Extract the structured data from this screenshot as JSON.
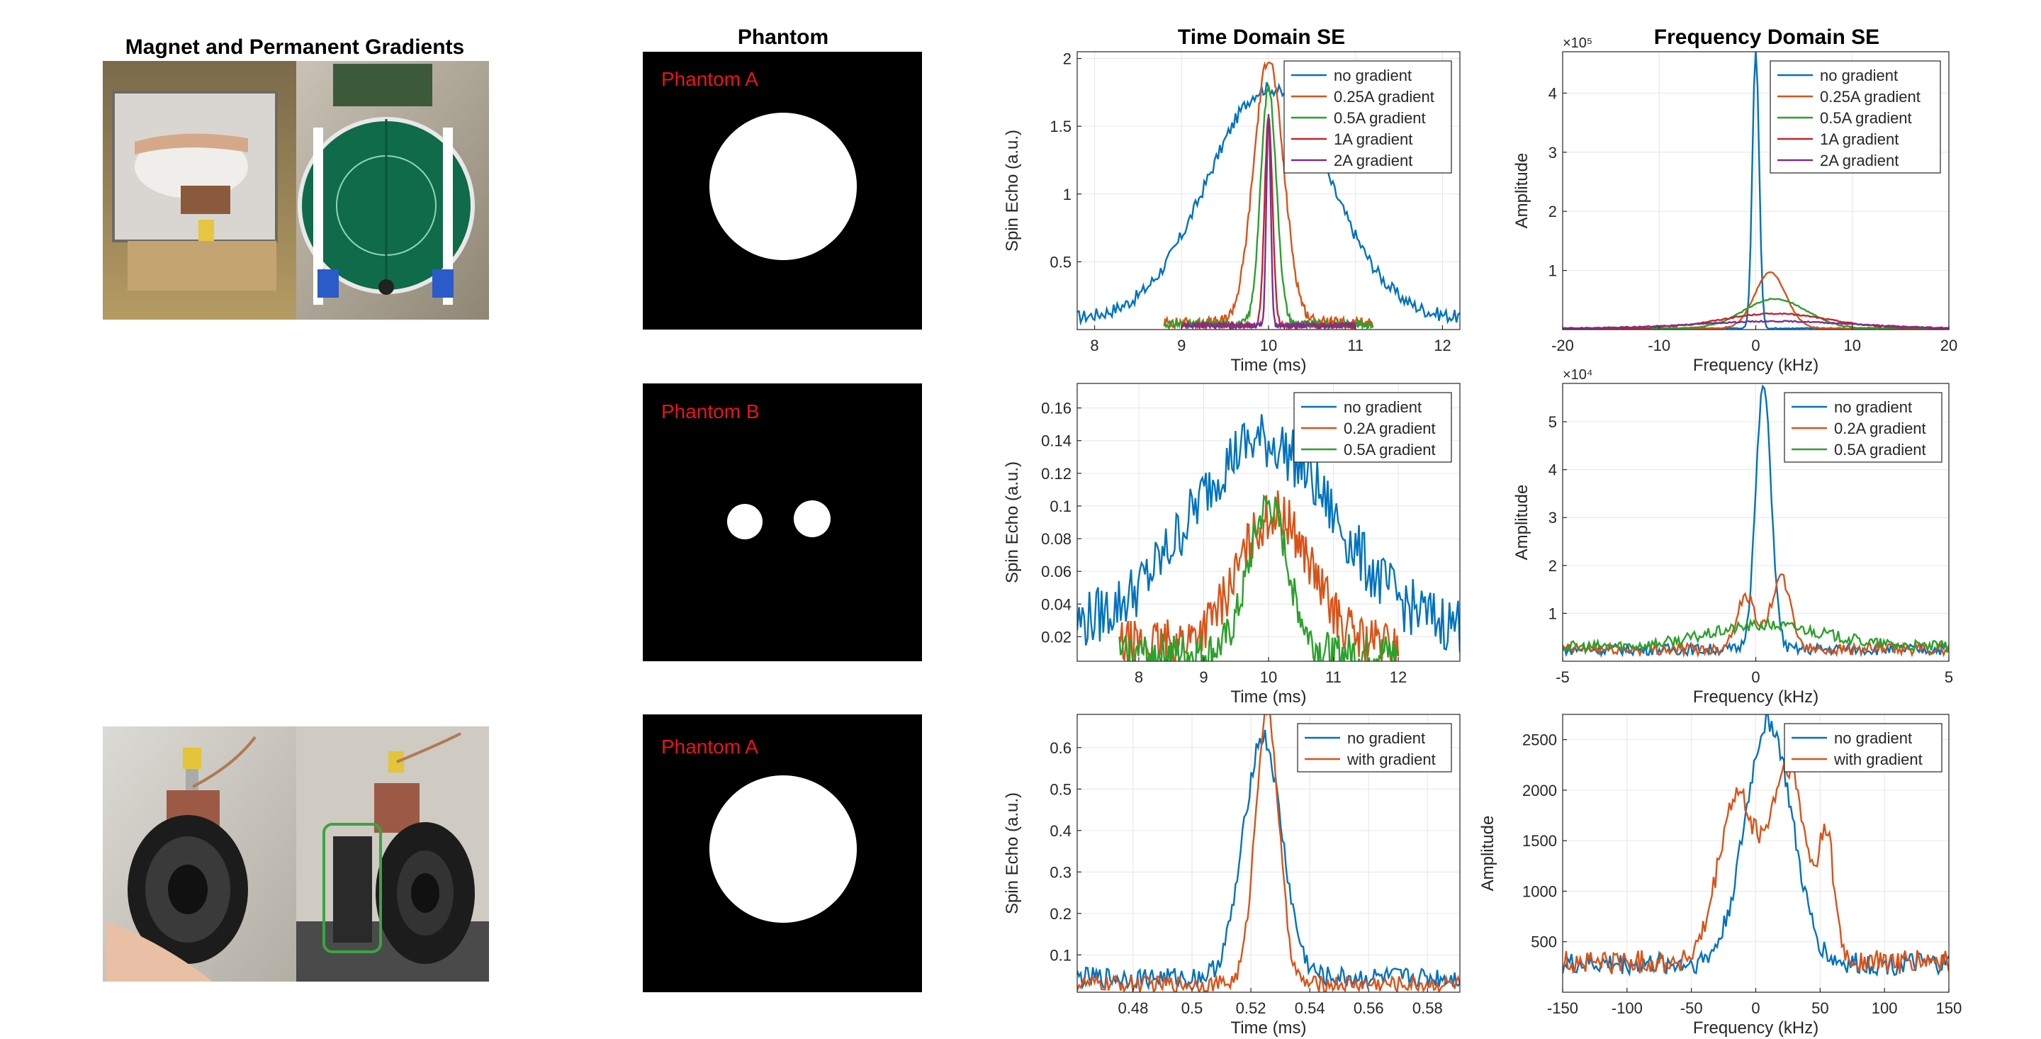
{
  "column_titles": {
    "hardware": "Magnet and Permanent Gradients",
    "phantom": "Phantom",
    "time": "Time Domain SE",
    "freq": "Frequency Domain SE"
  },
  "phantoms": [
    {
      "label": "Phantom A",
      "shape": "disk"
    },
    {
      "label": "Phantom B",
      "shape": "two-dots"
    },
    {
      "label": "Phantom A",
      "shape": "disk"
    }
  ],
  "colors": {
    "blue": "#0072BD",
    "orange": "#D95319",
    "yellow": "#EDB120",
    "green": "#2CA02C",
    "red": "#C0272D",
    "purple": "#7E2F8E",
    "label_red": "#E8141B"
  },
  "chart_data": [
    {
      "id": "time-a",
      "type": "line",
      "title": "",
      "xlabel": "Time (ms)",
      "ylabel": "Spin Echo (a.u.)",
      "xlim": [
        7.8,
        12.2
      ],
      "ylim": [
        0,
        2.05
      ],
      "xticks": [
        8,
        9,
        10,
        11,
        12
      ],
      "xtick_labels": [
        "8",
        "9",
        "10",
        "11",
        "12"
      ],
      "yticks": [
        0.5,
        1,
        1.5,
        2
      ],
      "ytick_labels": [
        "0.5",
        "1",
        "1.5",
        "2"
      ],
      "exponent": "",
      "series": [
        {
          "name": "no gradient",
          "color": "#0072BD",
          "kind": "gauss",
          "center": 10,
          "width": 0.7,
          "amp": 1.7,
          "xrange": [
            7.8,
            12.2
          ],
          "noise": 0.05,
          "base": 0.08
        },
        {
          "name": "0.25A gradient",
          "color": "#D95319",
          "kind": "gauss",
          "center": 10,
          "width": 0.17,
          "amp": 1.95,
          "xrange": [
            8.8,
            11.2
          ],
          "noise": 0.04,
          "base": 0.05
        },
        {
          "name": "0.5A gradient",
          "color": "#2CA02C",
          "kind": "gauss",
          "center": 10,
          "width": 0.09,
          "amp": 1.75,
          "xrange": [
            8.8,
            11.2
          ],
          "noise": 0.03,
          "base": 0.04
        },
        {
          "name": "1A gradient",
          "color": "#C0272D",
          "kind": "gauss",
          "center": 10,
          "width": 0.045,
          "amp": 1.55,
          "xrange": [
            9.0,
            11.0
          ],
          "noise": 0.02,
          "base": 0.03
        },
        {
          "name": "2A gradient",
          "color": "#7E2F8E",
          "kind": "gauss",
          "center": 10,
          "width": 0.025,
          "amp": 1.55,
          "xrange": [
            9.0,
            11.0
          ],
          "noise": 0.02,
          "base": 0.03
        }
      ]
    },
    {
      "id": "freq-a",
      "type": "line",
      "title": "",
      "xlabel": "Frequency (kHz)",
      "ylabel": "Amplitude",
      "xlim": [
        -20,
        20
      ],
      "ylim": [
        0,
        4.7
      ],
      "xticks": [
        -20,
        -10,
        0,
        10,
        20
      ],
      "xtick_labels": [
        "-20",
        "-10",
        "0",
        "10",
        "20"
      ],
      "yticks": [
        1,
        2,
        3,
        4
      ],
      "ytick_labels": [
        "1",
        "2",
        "3",
        "4"
      ],
      "exponent": "×10⁵",
      "series": [
        {
          "name": "no gradient",
          "color": "#0072BD",
          "kind": "gauss",
          "center": 0,
          "width": 0.35,
          "amp": 4.7,
          "xrange": [
            -20,
            20
          ],
          "noise": 0.01,
          "base": 0.02
        },
        {
          "name": "0.25A gradient",
          "color": "#D95319",
          "kind": "gauss",
          "center": 1.5,
          "width": 1.6,
          "amp": 0.95,
          "xrange": [
            -20,
            20
          ],
          "noise": 0.01,
          "base": 0.02
        },
        {
          "name": "0.5A gradient",
          "color": "#2CA02C",
          "kind": "gauss",
          "center": 2,
          "width": 3.2,
          "amp": 0.5,
          "xrange": [
            -20,
            20
          ],
          "noise": 0.01,
          "base": 0.02
        },
        {
          "name": "1A gradient",
          "color": "#C0272D",
          "kind": "gauss",
          "center": 2,
          "width": 5.5,
          "amp": 0.25,
          "xrange": [
            -20,
            20
          ],
          "noise": 0.01,
          "base": 0.02
        },
        {
          "name": "2A gradient",
          "color": "#7E2F8E",
          "kind": "gauss",
          "center": 2,
          "width": 8,
          "amp": 0.12,
          "xrange": [
            -20,
            20
          ],
          "noise": 0.01,
          "base": 0.02
        }
      ]
    },
    {
      "id": "time-b",
      "type": "line",
      "title": "",
      "xlabel": "Time (ms)",
      "ylabel": "Spin Echo (a.u.)",
      "xlim": [
        7.05,
        12.95
      ],
      "ylim": [
        0.005,
        0.175
      ],
      "xticks": [
        8,
        9,
        10,
        11,
        12
      ],
      "xtick_labels": [
        "8",
        "9",
        "10",
        "11",
        "12"
      ],
      "yticks": [
        0.02,
        0.04,
        0.06,
        0.08,
        0.1,
        0.12,
        0.14,
        0.16
      ],
      "ytick_labels": [
        "0.02",
        "0.04",
        "0.06",
        "0.08",
        "0.1",
        "0.12",
        "0.14",
        "0.16"
      ],
      "exponent": "",
      "series": [
        {
          "name": "no gradient",
          "color": "#0072BD",
          "kind": "gauss",
          "center": 9.9,
          "width": 1.1,
          "amp": 0.115,
          "xrange": [
            7.05,
            12.95
          ],
          "noise": 0.018,
          "base": 0.025
        },
        {
          "name": "0.2A gradient",
          "color": "#D95319",
          "kind": "gauss",
          "center": 10.1,
          "width": 0.55,
          "amp": 0.08,
          "xrange": [
            7.7,
            12.0
          ],
          "noise": 0.015,
          "base": 0.015
        },
        {
          "name": "0.5A gradient",
          "color": "#2CA02C",
          "kind": "gauss",
          "center": 10,
          "width": 0.3,
          "amp": 0.09,
          "xrange": [
            7.7,
            12.0
          ],
          "noise": 0.012,
          "base": 0.01
        }
      ]
    },
    {
      "id": "freq-b",
      "type": "line",
      "title": "",
      "xlabel": "Frequency (kHz)",
      "ylabel": "Amplitude",
      "xlim": [
        -5,
        5
      ],
      "ylim": [
        0,
        5.8
      ],
      "xticks": [
        -5,
        0,
        5
      ],
      "xtick_labels": [
        "-5",
        "0",
        "5"
      ],
      "yticks": [
        1,
        2,
        3,
        4,
        5
      ],
      "ytick_labels": [
        "1",
        "2",
        "3",
        "4",
        "5"
      ],
      "exponent": "×10⁴",
      "series": [
        {
          "name": "no gradient",
          "color": "#0072BD",
          "kind": "gauss",
          "center": 0.2,
          "width": 0.2,
          "amp": 5.5,
          "xrange": [
            -5,
            5
          ],
          "noise": 0.12,
          "base": 0.25
        },
        {
          "name": "0.2A gradient",
          "color": "#D95319",
          "kind": "twin",
          "center": 0.55,
          "width": 0.25,
          "amp": 1.3,
          "xrange": [
            -5,
            5
          ],
          "noise": 0.12,
          "base": 0.25
        },
        {
          "name": "0.5A gradient",
          "color": "#2CA02C",
          "kind": "gauss",
          "center": 0.3,
          "width": 1.5,
          "amp": 0.45,
          "xrange": [
            -5,
            5
          ],
          "noise": 0.12,
          "base": 0.3
        }
      ]
    },
    {
      "id": "time-c",
      "type": "line",
      "title": "",
      "xlabel": "Time (ms)",
      "ylabel": "Spin Echo (a.u.)",
      "xlim": [
        0.461,
        0.591
      ],
      "ylim": [
        0.01,
        0.68
      ],
      "xticks": [
        0.48,
        0.5,
        0.52,
        0.54,
        0.56,
        0.58
      ],
      "xtick_labels": [
        "0.48",
        "0.5",
        "0.52",
        "0.54",
        "0.56",
        "0.58"
      ],
      "yticks": [
        0.1,
        0.2,
        0.3,
        0.4,
        0.5,
        0.6
      ],
      "ytick_labels": [
        "0.1",
        "0.2",
        "0.3",
        "0.4",
        "0.5",
        "0.6"
      ],
      "exponent": "",
      "series": [
        {
          "name": "no gradient",
          "color": "#0072BD",
          "kind": "gauss",
          "center": 0.524,
          "width": 0.0065,
          "amp": 0.58,
          "xrange": [
            0.461,
            0.591
          ],
          "noise": 0.025,
          "base": 0.045
        },
        {
          "name": "with gradient",
          "color": "#D95319",
          "kind": "gauss",
          "center": 0.5255,
          "width": 0.004,
          "amp": 0.66,
          "xrange": [
            0.461,
            0.591
          ],
          "noise": 0.02,
          "base": 0.03
        }
      ]
    },
    {
      "id": "freq-c",
      "type": "line",
      "title": "",
      "xlabel": "Frequency (kHz)",
      "ylabel": "Amplitude",
      "xlim": [
        -150,
        150
      ],
      "ylim": [
        0,
        2750
      ],
      "xticks": [
        -150,
        -100,
        -50,
        0,
        50,
        100,
        150
      ],
      "xtick_labels": [
        "-150",
        "-100",
        "-50",
        "0",
        "50",
        "100",
        "150"
      ],
      "yticks": [
        500,
        1000,
        1500,
        2000,
        2500
      ],
      "ytick_labels": [
        "500",
        "1000",
        "1500",
        "2000",
        "2500"
      ],
      "exponent": "",
      "series": [
        {
          "name": "no gradient",
          "color": "#0072BD",
          "kind": "gauss",
          "center": 10,
          "width": 18,
          "amp": 2400,
          "xrange": [
            -150,
            150
          ],
          "noise": 110,
          "base": 280
        },
        {
          "name": "with gradient",
          "color": "#D95319",
          "kind": "twin2",
          "center": 10,
          "width": 40,
          "amp": 1900,
          "xrange": [
            -150,
            150
          ],
          "noise": 120,
          "base": 300
        }
      ]
    }
  ]
}
